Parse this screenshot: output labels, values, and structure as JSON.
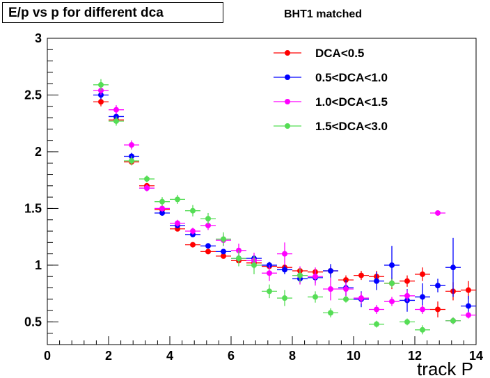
{
  "chart_data": {
    "type": "scatter",
    "title": "E/p vs p for different dca",
    "subtitle": "BHT1 matched",
    "xlabel": "track P",
    "ylabel": "",
    "xlim": [
      0,
      14
    ],
    "ylim": [
      0.3,
      3.0
    ],
    "x_ticks": [
      0,
      2,
      4,
      6,
      8,
      10,
      12,
      14
    ],
    "y_ticks": [
      0.5,
      1,
      1.5,
      2,
      2.5,
      3
    ],
    "x_tick_labels": [
      "0",
      "2",
      "4",
      "6",
      "8",
      "10",
      "12",
      "14"
    ],
    "y_tick_labels": [
      "0.5",
      "1",
      "1.5",
      "2",
      "2.5",
      "3"
    ],
    "grid": false,
    "legend_position": "top-right",
    "series": [
      {
        "name": "DCA<0.5",
        "color": "#ff0000",
        "points": [
          {
            "x": 1.75,
            "y": 2.44,
            "xerr": 0.25,
            "yerr": 0.04
          },
          {
            "x": 2.25,
            "y": 2.28,
            "xerr": 0.25,
            "yerr": 0.03
          },
          {
            "x": 2.75,
            "y": 1.91,
            "xerr": 0.25,
            "yerr": 0.02
          },
          {
            "x": 3.25,
            "y": 1.7,
            "xerr": 0.25,
            "yerr": 0.02
          },
          {
            "x": 3.75,
            "y": 1.49,
            "xerr": 0.25,
            "yerr": 0.02
          },
          {
            "x": 4.25,
            "y": 1.32,
            "xerr": 0.25,
            "yerr": 0.02
          },
          {
            "x": 4.75,
            "y": 1.18,
            "xerr": 0.25,
            "yerr": 0.02
          },
          {
            "x": 5.25,
            "y": 1.12,
            "xerr": 0.25,
            "yerr": 0.02
          },
          {
            "x": 5.75,
            "y": 1.08,
            "xerr": 0.25,
            "yerr": 0.02
          },
          {
            "x": 6.25,
            "y": 1.04,
            "xerr": 0.25,
            "yerr": 0.02
          },
          {
            "x": 6.75,
            "y": 1.02,
            "xerr": 0.25,
            "yerr": 0.02
          },
          {
            "x": 7.25,
            "y": 0.99,
            "xerr": 0.25,
            "yerr": 0.02
          },
          {
            "x": 7.75,
            "y": 0.98,
            "xerr": 0.25,
            "yerr": 0.03
          },
          {
            "x": 8.25,
            "y": 0.95,
            "xerr": 0.25,
            "yerr": 0.03
          },
          {
            "x": 8.75,
            "y": 0.94,
            "xerr": 0.25,
            "yerr": 0.03
          },
          {
            "x": 9.25,
            "y": 0.95,
            "xerr": 0.25,
            "yerr": 0.04
          },
          {
            "x": 9.75,
            "y": 0.87,
            "xerr": 0.25,
            "yerr": 0.04
          },
          {
            "x": 10.25,
            "y": 0.91,
            "xerr": 0.25,
            "yerr": 0.04
          },
          {
            "x": 10.75,
            "y": 0.9,
            "xerr": 0.25,
            "yerr": 0.05
          },
          {
            "x": 11.25,
            "y": 0.84,
            "xerr": 0.25,
            "yerr": 0.05
          },
          {
            "x": 11.75,
            "y": 0.86,
            "xerr": 0.25,
            "yerr": 0.05
          },
          {
            "x": 12.25,
            "y": 0.92,
            "xerr": 0.25,
            "yerr": 0.06
          },
          {
            "x": 12.75,
            "y": 0.61,
            "xerr": 0.25,
            "yerr": 0.07
          },
          {
            "x": 13.25,
            "y": 0.77,
            "xerr": 0.25,
            "yerr": 0.08
          },
          {
            "x": 13.75,
            "y": 0.78,
            "xerr": 0.25,
            "yerr": 0.08
          }
        ]
      },
      {
        "name": "0.5<DCA<1.0",
        "color": "#0000ff",
        "points": [
          {
            "x": 1.75,
            "y": 2.5,
            "xerr": 0.25,
            "yerr": 0.04
          },
          {
            "x": 2.25,
            "y": 2.31,
            "xerr": 0.25,
            "yerr": 0.03
          },
          {
            "x": 2.75,
            "y": 1.96,
            "xerr": 0.25,
            "yerr": 0.03
          },
          {
            "x": 3.25,
            "y": 1.68,
            "xerr": 0.25,
            "yerr": 0.02
          },
          {
            "x": 3.75,
            "y": 1.46,
            "xerr": 0.25,
            "yerr": 0.02
          },
          {
            "x": 4.25,
            "y": 1.35,
            "xerr": 0.25,
            "yerr": 0.02
          },
          {
            "x": 4.75,
            "y": 1.27,
            "xerr": 0.25,
            "yerr": 0.02
          },
          {
            "x": 5.25,
            "y": 1.17,
            "xerr": 0.25,
            "yerr": 0.02
          },
          {
            "x": 5.75,
            "y": 1.12,
            "xerr": 0.25,
            "yerr": 0.02
          },
          {
            "x": 6.25,
            "y": 1.06,
            "xerr": 0.25,
            "yerr": 0.03
          },
          {
            "x": 6.75,
            "y": 1.06,
            "xerr": 0.25,
            "yerr": 0.03
          },
          {
            "x": 7.25,
            "y": 1.0,
            "xerr": 0.25,
            "yerr": 0.03
          },
          {
            "x": 7.75,
            "y": 0.96,
            "xerr": 0.25,
            "yerr": 0.04
          },
          {
            "x": 8.25,
            "y": 0.88,
            "xerr": 0.25,
            "yerr": 0.04
          },
          {
            "x": 8.75,
            "y": 0.89,
            "xerr": 0.25,
            "yerr": 0.05
          },
          {
            "x": 9.25,
            "y": 0.95,
            "xerr": 0.25,
            "yerr": 0.06
          },
          {
            "x": 9.75,
            "y": 0.8,
            "xerr": 0.25,
            "yerr": 0.07
          },
          {
            "x": 10.25,
            "y": 0.7,
            "xerr": 0.25,
            "yerr": 0.07
          },
          {
            "x": 10.75,
            "y": 0.86,
            "xerr": 0.25,
            "yerr": 0.08
          },
          {
            "x": 11.25,
            "y": 1.0,
            "xerr": 0.25,
            "yerr": 0.17
          },
          {
            "x": 11.75,
            "y": 0.69,
            "xerr": 0.25,
            "yerr": 0.1
          },
          {
            "x": 12.25,
            "y": 0.72,
            "xerr": 0.25,
            "yerr": 0.12
          },
          {
            "x": 12.75,
            "y": 0.82,
            "xerr": 0.25,
            "yerr": 0.06
          },
          {
            "x": 13.25,
            "y": 0.98,
            "xerr": 0.25,
            "yerr": 0.26
          },
          {
            "x": 13.75,
            "y": 0.64,
            "xerr": 0.25,
            "yerr": 0.09
          }
        ]
      },
      {
        "name": "1.0<DCA<1.5",
        "color": "#ff00ff",
        "points": [
          {
            "x": 1.75,
            "y": 2.54,
            "xerr": 0.25,
            "yerr": 0.04
          },
          {
            "x": 2.25,
            "y": 2.37,
            "xerr": 0.25,
            "yerr": 0.04
          },
          {
            "x": 2.75,
            "y": 2.06,
            "xerr": 0.25,
            "yerr": 0.04
          },
          {
            "x": 3.25,
            "y": 1.68,
            "xerr": 0.25,
            "yerr": 0.03
          },
          {
            "x": 3.75,
            "y": 1.5,
            "xerr": 0.25,
            "yerr": 0.03
          },
          {
            "x": 4.25,
            "y": 1.37,
            "xerr": 0.25,
            "yerr": 0.03
          },
          {
            "x": 4.75,
            "y": 1.3,
            "xerr": 0.25,
            "yerr": 0.03
          },
          {
            "x": 5.25,
            "y": 1.35,
            "xerr": 0.25,
            "yerr": 0.04
          },
          {
            "x": 5.75,
            "y": 1.22,
            "xerr": 0.25,
            "yerr": 0.05
          },
          {
            "x": 6.25,
            "y": 1.13,
            "xerr": 0.25,
            "yerr": 0.06
          },
          {
            "x": 6.75,
            "y": 1.04,
            "xerr": 0.25,
            "yerr": 0.07
          },
          {
            "x": 7.25,
            "y": 0.93,
            "xerr": 0.25,
            "yerr": 0.07
          },
          {
            "x": 7.75,
            "y": 1.1,
            "xerr": 0.25,
            "yerr": 0.1
          },
          {
            "x": 8.25,
            "y": 0.91,
            "xerr": 0.25,
            "yerr": 0.08
          },
          {
            "x": 8.75,
            "y": 0.9,
            "xerr": 0.25,
            "yerr": 0.08
          },
          {
            "x": 9.25,
            "y": 0.79,
            "xerr": 0.25,
            "yerr": 0.1
          },
          {
            "x": 9.75,
            "y": 0.79,
            "xerr": 0.25,
            "yerr": 0.06
          },
          {
            "x": 10.25,
            "y": 0.71,
            "xerr": 0.25,
            "yerr": 0.05
          },
          {
            "x": 10.75,
            "y": 0.61,
            "xerr": 0.25,
            "yerr": 0.04
          },
          {
            "x": 11.25,
            "y": 0.68,
            "xerr": 0.25,
            "yerr": 0.04
          },
          {
            "x": 11.75,
            "y": 0.73,
            "xerr": 0.25,
            "yerr": 0.05
          },
          {
            "x": 12.25,
            "y": 0.61,
            "xerr": 0.25,
            "yerr": 0.04
          },
          {
            "x": 12.75,
            "y": 1.46,
            "xerr": 0.25,
            "yerr": 0.02
          },
          {
            "x": 13.25,
            "y": 0.51,
            "xerr": 0.25,
            "yerr": 0.03
          },
          {
            "x": 13.75,
            "y": 0.56,
            "xerr": 0.25,
            "yerr": 0.03
          }
        ]
      },
      {
        "name": "1.5<DCA<3.0",
        "color": "#55dd55",
        "points": [
          {
            "x": 1.75,
            "y": 2.59,
            "xerr": 0.25,
            "yerr": 0.05
          },
          {
            "x": 2.25,
            "y": 2.27,
            "xerr": 0.25,
            "yerr": 0.04
          },
          {
            "x": 2.75,
            "y": 1.92,
            "xerr": 0.25,
            "yerr": 0.04
          },
          {
            "x": 3.25,
            "y": 1.76,
            "xerr": 0.25,
            "yerr": 0.03
          },
          {
            "x": 3.75,
            "y": 1.56,
            "xerr": 0.25,
            "yerr": 0.04
          },
          {
            "x": 4.25,
            "y": 1.58,
            "xerr": 0.25,
            "yerr": 0.04
          },
          {
            "x": 4.75,
            "y": 1.48,
            "xerr": 0.25,
            "yerr": 0.05
          },
          {
            "x": 5.25,
            "y": 1.41,
            "xerr": 0.25,
            "yerr": 0.05
          },
          {
            "x": 5.75,
            "y": 1.23,
            "xerr": 0.25,
            "yerr": 0.06
          },
          {
            "x": 6.25,
            "y": 1.06,
            "xerr": 0.25,
            "yerr": 0.07
          },
          {
            "x": 6.75,
            "y": 1.0,
            "xerr": 0.25,
            "yerr": 0.08
          },
          {
            "x": 7.25,
            "y": 0.77,
            "xerr": 0.25,
            "yerr": 0.06
          },
          {
            "x": 7.75,
            "y": 0.71,
            "xerr": 0.25,
            "yerr": 0.07
          },
          {
            "x": 8.25,
            "y": 0.91,
            "xerr": 0.25,
            "yerr": 0.06
          },
          {
            "x": 8.75,
            "y": 0.72,
            "xerr": 0.25,
            "yerr": 0.05
          },
          {
            "x": 9.25,
            "y": 0.58,
            "xerr": 0.25,
            "yerr": 0.04
          },
          {
            "x": 9.75,
            "y": 0.7,
            "xerr": 0.25,
            "yerr": 0.03
          },
          {
            "x": 10.75,
            "y": 0.48,
            "xerr": 0.25,
            "yerr": 0.03
          },
          {
            "x": 11.25,
            "y": 0.84,
            "xerr": 0.25,
            "yerr": 0.04
          },
          {
            "x": 11.75,
            "y": 0.5,
            "xerr": 0.25,
            "yerr": 0.03
          },
          {
            "x": 12.25,
            "y": 0.43,
            "xerr": 0.25,
            "yerr": 0.04
          },
          {
            "x": 13.25,
            "y": 0.51,
            "xerr": 0.25,
            "yerr": 0.03
          }
        ]
      }
    ]
  }
}
